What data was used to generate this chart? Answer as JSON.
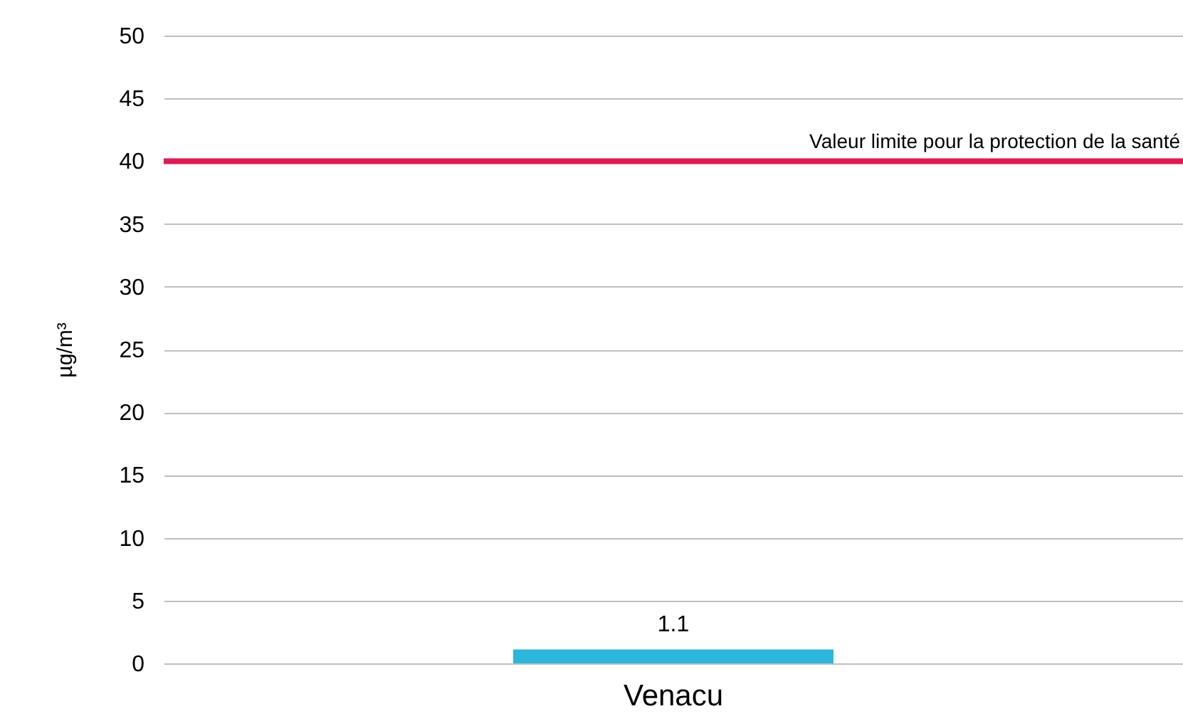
{
  "chart_data": {
    "type": "bar",
    "ylabel": "µg/m³",
    "categories": [
      "Venacu"
    ],
    "values": [
      1.1
    ],
    "color": "#2bb6dd",
    "data_labels": true,
    "ylim": [
      0,
      50
    ],
    "yticks": [
      0,
      5,
      10,
      15,
      20,
      25,
      30,
      35,
      40,
      45,
      50
    ],
    "grid": "y",
    "ref_lines": [
      {
        "axis": "y",
        "value": 40,
        "label": "Valeur limite pour la protection de la santé",
        "color": "#e5174f"
      }
    ]
  }
}
